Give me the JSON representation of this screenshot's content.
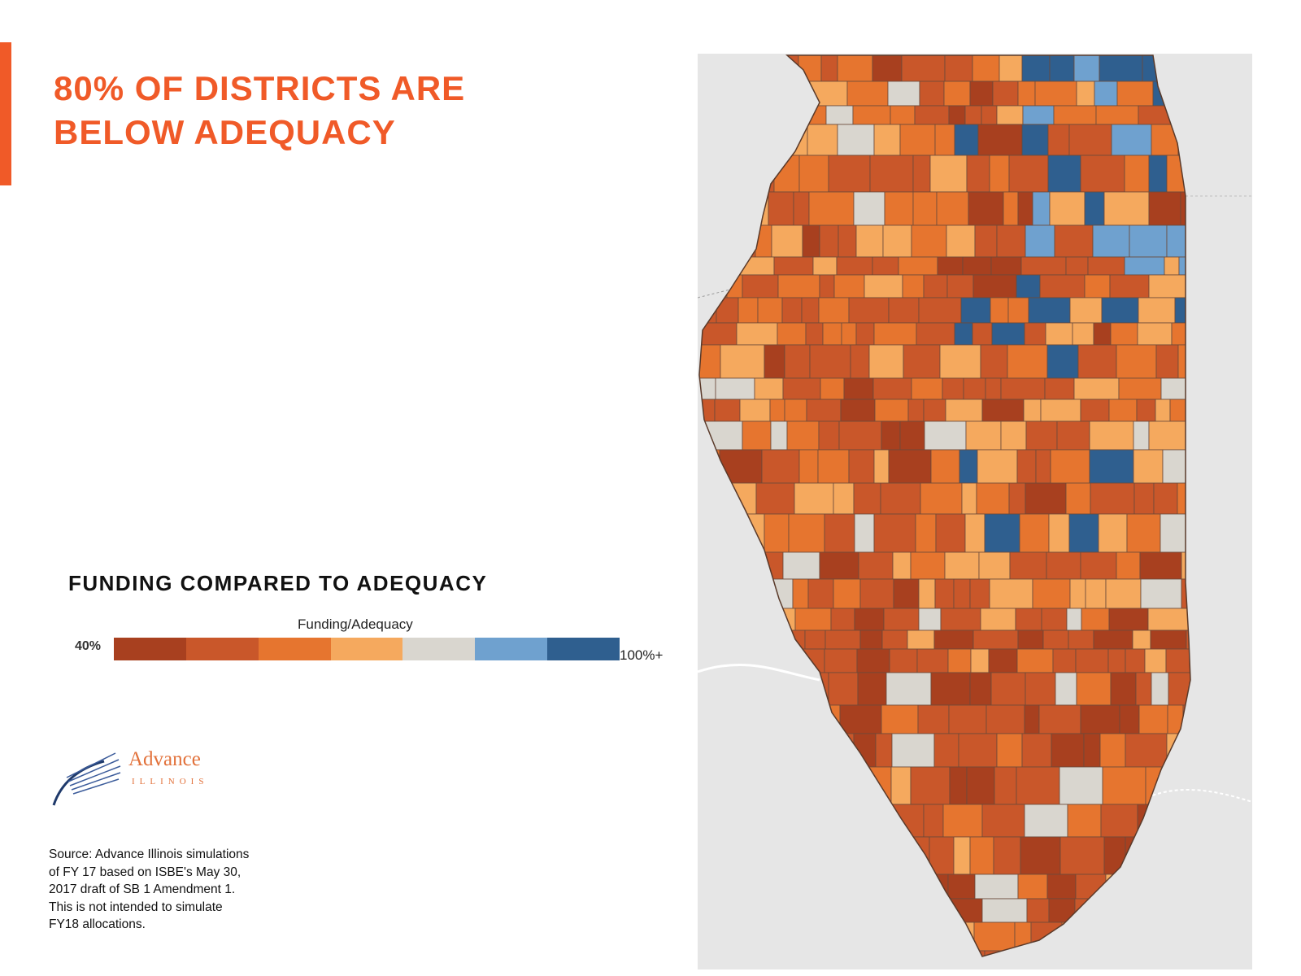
{
  "title": {
    "line1": "80% OF DISTRICTS ARE",
    "line2": "BELOW ADEQUACY"
  },
  "legend": {
    "title": "FUNDING COMPARED TO ADEQUACY",
    "subtitle": "Funding/Adequacy",
    "min_label": "40%",
    "max_label": "100%+",
    "colors": [
      "#a8401f",
      "#c9572a",
      "#e6752f",
      "#f5a95e",
      "#d9d6cf",
      "#6fa1cf",
      "#2f5f8f"
    ]
  },
  "logo": {
    "name": "Advance",
    "subname": "ILLINOIS"
  },
  "source": {
    "text": "Source: Advance Illinois simulations of FY 17 based on ISBE's May 30, 2017 draft of SB 1 Amendment 1. This is not intended to simulate FY18 allocations."
  },
  "map": {
    "region": "Illinois school districts",
    "background_color": "#e6e6e6",
    "district_border_color": "#6b4a3a"
  }
}
